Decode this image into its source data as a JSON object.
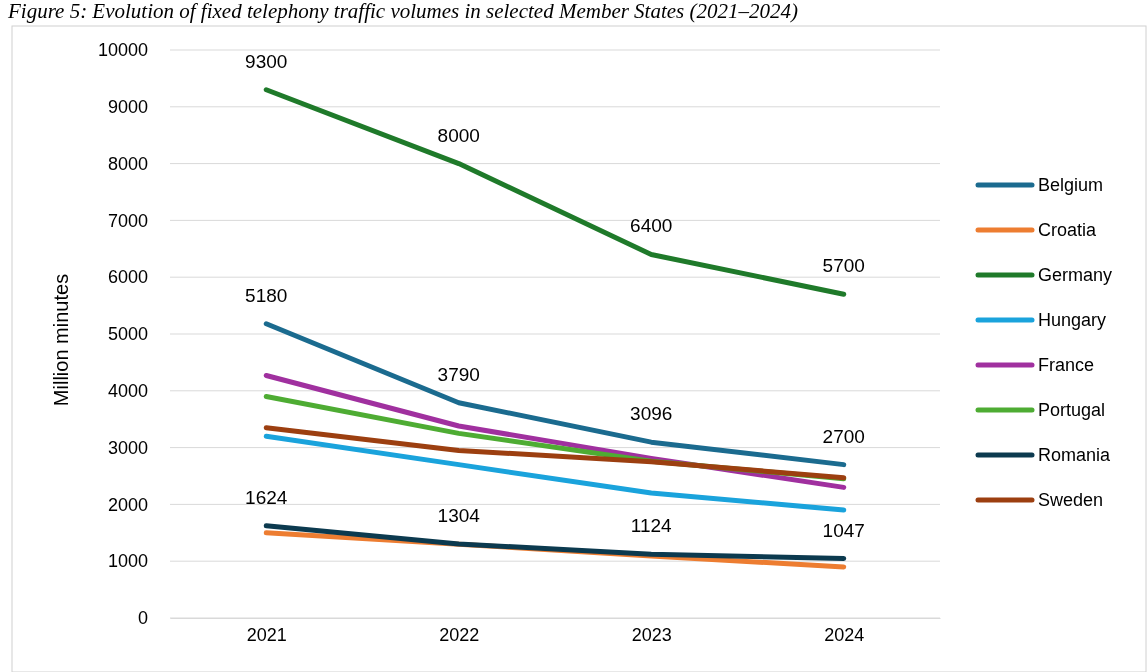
{
  "chart_data": {
    "type": "line",
    "title": "Figure 5: Evolution of fixed telephony traffic volumes in selected Member States (2021–2024)",
    "ylabel": "Million minutes",
    "categories": [
      "2021",
      "2022",
      "2023",
      "2024"
    ],
    "ylim": [
      0,
      10000
    ],
    "yticks": [
      0,
      1000,
      2000,
      3000,
      4000,
      5000,
      6000,
      7000,
      8000,
      9000,
      10000
    ],
    "grid": "y",
    "legend": "right",
    "line_style": "solid",
    "marker": "none",
    "series": [
      {
        "name": "Belgium",
        "color": "#1b6b8f",
        "values": [
          5180,
          3790,
          3096,
          2700
        ],
        "value_labels": [
          "5180",
          "3790",
          "3096",
          "2700"
        ]
      },
      {
        "name": "Croatia",
        "color": "#ed7d31",
        "values": [
          1500,
          1300,
          1090,
          900
        ]
      },
      {
        "name": "Germany",
        "color": "#1f7a2a",
        "values": [
          9300,
          8000,
          6400,
          5700
        ],
        "value_labels": [
          "9300",
          "8000",
          "6400",
          "5700"
        ]
      },
      {
        "name": "Hungary",
        "color": "#1aa3dc",
        "values": [
          3200,
          2700,
          2200,
          1900
        ]
      },
      {
        "name": "France",
        "color": "#a0309f",
        "values": [
          4270,
          3380,
          2810,
          2300
        ]
      },
      {
        "name": "Portugal",
        "color": "#4eac33",
        "values": [
          3900,
          3250,
          2760,
          2450
        ]
      },
      {
        "name": "Romania",
        "color": "#0c3a4f",
        "values": [
          1624,
          1304,
          1124,
          1047
        ],
        "value_labels": [
          "1624",
          "1304",
          "1124",
          "1047"
        ]
      },
      {
        "name": "Sweden",
        "color": "#9c3f10",
        "values": [
          3350,
          2950,
          2750,
          2470
        ]
      }
    ]
  }
}
